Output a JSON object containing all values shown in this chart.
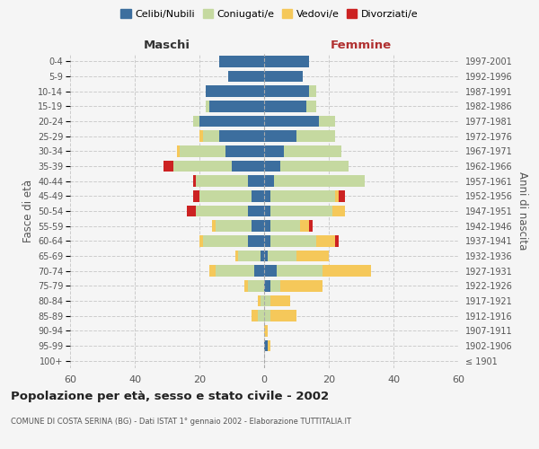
{
  "age_groups": [
    "100+",
    "95-99",
    "90-94",
    "85-89",
    "80-84",
    "75-79",
    "70-74",
    "65-69",
    "60-64",
    "55-59",
    "50-54",
    "45-49",
    "40-44",
    "35-39",
    "30-34",
    "25-29",
    "20-24",
    "15-19",
    "10-14",
    "5-9",
    "0-4"
  ],
  "birth_years": [
    "≤ 1901",
    "1902-1906",
    "1907-1911",
    "1912-1916",
    "1917-1921",
    "1922-1926",
    "1927-1931",
    "1932-1936",
    "1937-1941",
    "1942-1946",
    "1947-1951",
    "1952-1956",
    "1957-1961",
    "1962-1966",
    "1967-1971",
    "1972-1976",
    "1977-1981",
    "1982-1986",
    "1987-1991",
    "1992-1996",
    "1997-2001"
  ],
  "male": {
    "celibi": [
      0,
      0,
      0,
      0,
      0,
      0,
      3,
      1,
      5,
      4,
      5,
      4,
      5,
      10,
      12,
      14,
      20,
      17,
      18,
      11,
      14
    ],
    "coniugati": [
      0,
      0,
      0,
      2,
      1,
      5,
      12,
      7,
      14,
      11,
      16,
      16,
      16,
      18,
      14,
      5,
      2,
      1,
      0,
      0,
      0
    ],
    "vedovi": [
      0,
      0,
      0,
      2,
      1,
      1,
      2,
      1,
      1,
      1,
      0,
      0,
      0,
      0,
      1,
      1,
      0,
      0,
      0,
      0,
      0
    ],
    "divorziati": [
      0,
      0,
      0,
      0,
      0,
      0,
      0,
      0,
      0,
      0,
      3,
      2,
      1,
      3,
      0,
      0,
      0,
      0,
      0,
      0,
      0
    ]
  },
  "female": {
    "nubili": [
      0,
      1,
      0,
      0,
      0,
      2,
      4,
      1,
      2,
      2,
      2,
      2,
      3,
      5,
      6,
      10,
      17,
      13,
      14,
      12,
      14
    ],
    "coniugate": [
      0,
      0,
      0,
      2,
      2,
      3,
      14,
      9,
      14,
      9,
      19,
      20,
      28,
      21,
      18,
      12,
      5,
      3,
      2,
      0,
      0
    ],
    "vedove": [
      0,
      1,
      1,
      8,
      6,
      13,
      15,
      10,
      6,
      3,
      4,
      1,
      0,
      0,
      0,
      0,
      0,
      0,
      0,
      0,
      0
    ],
    "divorziate": [
      0,
      0,
      0,
      0,
      0,
      0,
      0,
      0,
      1,
      1,
      0,
      2,
      0,
      0,
      0,
      0,
      0,
      0,
      0,
      0,
      0
    ]
  },
  "colors": {
    "celibi_nubili": "#3c6e9e",
    "coniugati": "#c5d9a0",
    "vedovi": "#f5c85a",
    "divorziati": "#cc2222"
  },
  "xlim": 60,
  "title": "Popolazione per età, sesso e stato civile - 2002",
  "subtitle": "COMUNE DI COSTA SERINA (BG) - Dati ISTAT 1° gennaio 2002 - Elaborazione TUTTITALIA.IT",
  "ylabel_left": "Fasce di età",
  "ylabel_right": "Anni di nascita",
  "xlabel_left": "Maschi",
  "xlabel_right": "Femmine",
  "legend_labels": [
    "Celibi/Nubili",
    "Coniugati/e",
    "Vedovi/e",
    "Divorziati/e"
  ],
  "background_color": "#f5f5f5",
  "grid_color": "#cccccc"
}
